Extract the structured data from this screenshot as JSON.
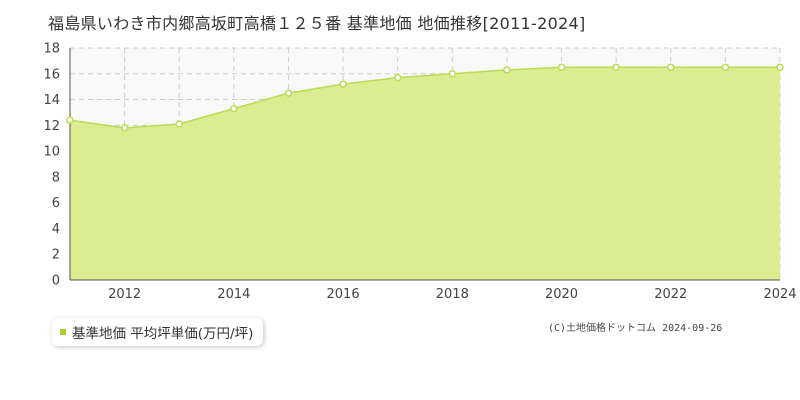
{
  "title": "福島県いわき市内郷高坂町高橋１２５番 基準地価 地価推移[2011-2024]",
  "credit": "(C)土地価格ドットコム 2024-09-26",
  "colors": {
    "fill": "#dcec91",
    "line": "#b9dc52",
    "marker_stroke": "#b9dc52",
    "legend_marker": "#a8cf2e",
    "plot_bg": "#f8f8f8",
    "grid": "#cccccc"
  },
  "chart_data": {
    "type": "area",
    "title": "福島県いわき市内郷高坂町高橋１２５番 基準地価 地価推移[2011-2024]",
    "xlabel": "",
    "ylabel": "",
    "x": [
      2011,
      2012,
      2013,
      2014,
      2015,
      2016,
      2017,
      2018,
      2019,
      2020,
      2021,
      2022,
      2023,
      2024
    ],
    "xlim": [
      2011,
      2024
    ],
    "ylim": [
      0,
      18
    ],
    "y_ticks": [
      0,
      2,
      4,
      6,
      8,
      10,
      12,
      14,
      16,
      18
    ],
    "x_ticks": [
      2012,
      2014,
      2016,
      2018,
      2020,
      2022,
      2024
    ],
    "grid": true,
    "legend_position": "bottom-left",
    "series": [
      {
        "name": "基準地価 平均坪単価(万円/坪)",
        "values": [
          12.4,
          11.8,
          12.1,
          13.3,
          14.5,
          15.2,
          15.7,
          16.0,
          16.3,
          16.5,
          16.5,
          16.5,
          16.5,
          16.5
        ]
      }
    ]
  }
}
